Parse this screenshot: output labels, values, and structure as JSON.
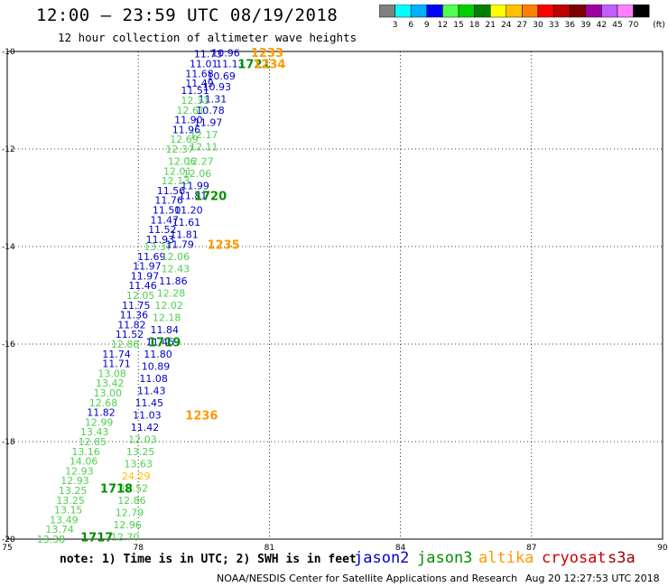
{
  "header": {
    "title": "12:00 – 23:59 UTC 08/19/2018",
    "subtitle": "12 hour collection of altimeter wave heights"
  },
  "colorbar": {
    "labels": [
      "3",
      "6",
      "9",
      "12",
      "15",
      "18",
      "21",
      "24",
      "27",
      "30",
      "33",
      "36",
      "39",
      "42",
      "45",
      "70"
    ],
    "unit": "(ft)",
    "colors": [
      "#808080",
      "#00ffff",
      "#00b0ff",
      "#0000ff",
      "#50ff50",
      "#00d000",
      "#008000",
      "#ffff00",
      "#ffc000",
      "#ff8000",
      "#ff0000",
      "#c00000",
      "#800000",
      "#a000a0",
      "#c060ff",
      "#ff80ff",
      "#000000"
    ]
  },
  "footer": {
    "note": "note: 1) Time is in UTC; 2) SWH is in feet",
    "org": "NOAA/NESDIS Center for Satellite Applications and Research",
    "timestamp": "Aug 20 12:27:53 UTC 2018"
  },
  "legend": [
    {
      "name": "jason2",
      "color": "#0000cc"
    },
    {
      "name": "jason3",
      "color": "#009000"
    },
    {
      "name": "altika",
      "color": "#ff9900"
    },
    {
      "name": "cryosat",
      "color": "#cc0000"
    },
    {
      "name": "s3a",
      "color": "#990000"
    }
  ],
  "chart_data": {
    "type": "scatter",
    "xlim": [
      75,
      90
    ],
    "ylim": [
      -20,
      -10
    ],
    "xticks": [
      "75",
      "78",
      "81",
      "84",
      "87",
      "90"
    ],
    "yticks": [
      "-10",
      "-12",
      "-14",
      "-16",
      "-18",
      "-20"
    ],
    "grid": true,
    "wave_height_labels": [
      {
        "lon": 79.6,
        "lat": -10.05,
        "text": "11.73",
        "color": "#0000cc"
      },
      {
        "lon": 80.0,
        "lat": -10.03,
        "text": "10.96",
        "color": "#0000cc"
      },
      {
        "lon": 79.5,
        "lat": -10.25,
        "text": "11.01",
        "color": "#0000cc"
      },
      {
        "lon": 80.1,
        "lat": -10.25,
        "text": "11.13",
        "color": "#0000cc"
      },
      {
        "lon": 79.4,
        "lat": -10.45,
        "text": "11.68",
        "color": "#0000cc"
      },
      {
        "lon": 79.9,
        "lat": -10.5,
        "text": "10.69",
        "color": "#0000cc"
      },
      {
        "lon": 79.4,
        "lat": -10.65,
        "text": "11.49",
        "color": "#0000cc"
      },
      {
        "lon": 79.8,
        "lat": -10.72,
        "text": "10.93",
        "color": "#0000cc"
      },
      {
        "lon": 79.3,
        "lat": -10.8,
        "text": "11.51",
        "color": "#0000cc"
      },
      {
        "lon": 79.7,
        "lat": -10.97,
        "text": "11.31",
        "color": "#0000cc"
      },
      {
        "lon": 79.3,
        "lat": -11.0,
        "text": "12.31",
        "color": "#50d050"
      },
      {
        "lon": 79.2,
        "lat": -11.2,
        "text": "12.61",
        "color": "#50d050"
      },
      {
        "lon": 79.65,
        "lat": -11.2,
        "text": "10.78",
        "color": "#0000cc"
      },
      {
        "lon": 79.15,
        "lat": -11.4,
        "text": "11.90",
        "color": "#0000cc"
      },
      {
        "lon": 79.6,
        "lat": -11.45,
        "text": "11.97",
        "color": "#0000cc"
      },
      {
        "lon": 79.1,
        "lat": -11.6,
        "text": "11.96",
        "color": "#0000cc"
      },
      {
        "lon": 79.5,
        "lat": -11.7,
        "text": "12.17",
        "color": "#50d050"
      },
      {
        "lon": 79.05,
        "lat": -11.8,
        "text": "12.69",
        "color": "#50d050"
      },
      {
        "lon": 79.5,
        "lat": -11.95,
        "text": "12.11",
        "color": "#50d050"
      },
      {
        "lon": 78.95,
        "lat": -12.0,
        "text": "12.37",
        "color": "#50d050"
      },
      {
        "lon": 79.0,
        "lat": -12.25,
        "text": "12.06",
        "color": "#50d050"
      },
      {
        "lon": 79.4,
        "lat": -12.25,
        "text": "12.27",
        "color": "#50d050"
      },
      {
        "lon": 78.9,
        "lat": -12.45,
        "text": "12.01",
        "color": "#50d050"
      },
      {
        "lon": 79.35,
        "lat": -12.5,
        "text": "12.06",
        "color": "#50d050"
      },
      {
        "lon": 78.85,
        "lat": -12.65,
        "text": "12.13",
        "color": "#50d050"
      },
      {
        "lon": 79.3,
        "lat": -12.75,
        "text": "11.99",
        "color": "#0000cc"
      },
      {
        "lon": 78.75,
        "lat": -12.85,
        "text": "11.56",
        "color": "#0000cc"
      },
      {
        "lon": 79.25,
        "lat": -12.95,
        "text": "11.81",
        "color": "#0000cc"
      },
      {
        "lon": 78.7,
        "lat": -13.05,
        "text": "11.76",
        "color": "#0000cc"
      },
      {
        "lon": 78.65,
        "lat": -13.25,
        "text": "11.50",
        "color": "#0000cc"
      },
      {
        "lon": 79.15,
        "lat": -13.25,
        "text": "11.20",
        "color": "#0000cc"
      },
      {
        "lon": 78.6,
        "lat": -13.45,
        "text": "11.47",
        "color": "#0000cc"
      },
      {
        "lon": 79.1,
        "lat": -13.5,
        "text": "11.61",
        "color": "#0000cc"
      },
      {
        "lon": 78.55,
        "lat": -13.65,
        "text": "11.52",
        "color": "#0000cc"
      },
      {
        "lon": 79.05,
        "lat": -13.75,
        "text": "11.81",
        "color": "#0000cc"
      },
      {
        "lon": 78.5,
        "lat": -13.85,
        "text": "11.93",
        "color": "#0000cc"
      },
      {
        "lon": 78.45,
        "lat": -14.0,
        "text": "13.37",
        "color": "#50d050"
      },
      {
        "lon": 78.95,
        "lat": -13.95,
        "text": "11.79",
        "color": "#0000cc"
      },
      {
        "lon": 78.3,
        "lat": -14.2,
        "text": "11.69",
        "color": "#0000cc"
      },
      {
        "lon": 78.85,
        "lat": -14.2,
        "text": "12.06",
        "color": "#50d050"
      },
      {
        "lon": 78.2,
        "lat": -14.4,
        "text": "11.97",
        "color": "#0000cc"
      },
      {
        "lon": 78.85,
        "lat": -14.45,
        "text": "12.43",
        "color": "#50d050"
      },
      {
        "lon": 78.15,
        "lat": -14.6,
        "text": "11.97",
        "color": "#0000cc"
      },
      {
        "lon": 78.8,
        "lat": -14.7,
        "text": "11.86",
        "color": "#0000cc"
      },
      {
        "lon": 78.1,
        "lat": -14.8,
        "text": "11.46",
        "color": "#0000cc"
      },
      {
        "lon": 78.75,
        "lat": -14.95,
        "text": "12.28",
        "color": "#50d050"
      },
      {
        "lon": 78.05,
        "lat": -15.0,
        "text": "12.05",
        "color": "#50d050"
      },
      {
        "lon": 78.7,
        "lat": -15.2,
        "text": "12.02",
        "color": "#50d050"
      },
      {
        "lon": 77.95,
        "lat": -15.2,
        "text": "11.75",
        "color": "#0000cc"
      },
      {
        "lon": 77.9,
        "lat": -15.4,
        "text": "11.36",
        "color": "#0000cc"
      },
      {
        "lon": 78.65,
        "lat": -15.45,
        "text": "12.18",
        "color": "#50d050"
      },
      {
        "lon": 77.85,
        "lat": -15.6,
        "text": "11.82",
        "color": "#0000cc"
      },
      {
        "lon": 78.6,
        "lat": -15.7,
        "text": "11.84",
        "color": "#0000cc"
      },
      {
        "lon": 77.8,
        "lat": -15.8,
        "text": "11.52",
        "color": "#0000cc"
      },
      {
        "lon": 77.7,
        "lat": -16.0,
        "text": "12.88",
        "color": "#50d050"
      },
      {
        "lon": 78.5,
        "lat": -15.95,
        "text": "11.45",
        "color": "#0000cc"
      },
      {
        "lon": 77.5,
        "lat": -16.2,
        "text": "11.74",
        "color": "#0000cc"
      },
      {
        "lon": 78.45,
        "lat": -16.2,
        "text": "11.80",
        "color": "#0000cc"
      },
      {
        "lon": 77.5,
        "lat": -16.4,
        "text": "11.71",
        "color": "#0000cc"
      },
      {
        "lon": 78.4,
        "lat": -16.45,
        "text": "10.89",
        "color": "#0000cc"
      },
      {
        "lon": 77.4,
        "lat": -16.6,
        "text": "13.08",
        "color": "#50d050"
      },
      {
        "lon": 78.35,
        "lat": -16.7,
        "text": "11.08",
        "color": "#0000cc"
      },
      {
        "lon": 77.35,
        "lat": -16.8,
        "text": "13.42",
        "color": "#50d050"
      },
      {
        "lon": 78.3,
        "lat": -16.95,
        "text": "11.43",
        "color": "#0000cc"
      },
      {
        "lon": 77.3,
        "lat": -17.0,
        "text": "13.00",
        "color": "#50d050"
      },
      {
        "lon": 78.25,
        "lat": -17.2,
        "text": "11.45",
        "color": "#0000cc"
      },
      {
        "lon": 77.2,
        "lat": -17.2,
        "text": "12.68",
        "color": "#50d050"
      },
      {
        "lon": 77.15,
        "lat": -17.4,
        "text": "11.82",
        "color": "#0000cc"
      },
      {
        "lon": 78.2,
        "lat": -17.45,
        "text": "11.03",
        "color": "#0000cc"
      },
      {
        "lon": 77.1,
        "lat": -17.6,
        "text": "12.99",
        "color": "#50d050"
      },
      {
        "lon": 78.15,
        "lat": -17.7,
        "text": "11.42",
        "color": "#0000cc"
      },
      {
        "lon": 77.0,
        "lat": -17.8,
        "text": "13.43",
        "color": "#50d050"
      },
      {
        "lon": 78.1,
        "lat": -17.95,
        "text": "12.03",
        "color": "#50d050"
      },
      {
        "lon": 76.95,
        "lat": -18.0,
        "text": "12.85",
        "color": "#50d050"
      },
      {
        "lon": 76.8,
        "lat": -18.2,
        "text": "13.16",
        "color": "#50d050"
      },
      {
        "lon": 78.05,
        "lat": -18.2,
        "text": "13.25",
        "color": "#50d050"
      },
      {
        "lon": 76.75,
        "lat": -18.4,
        "text": "14.06",
        "color": "#50d050"
      },
      {
        "lon": 78.0,
        "lat": -18.45,
        "text": "13.63",
        "color": "#50d050"
      },
      {
        "lon": 76.65,
        "lat": -18.6,
        "text": "12.93",
        "color": "#50d050"
      },
      {
        "lon": 77.95,
        "lat": -18.7,
        "text": "24.29",
        "color": "#ffc000"
      },
      {
        "lon": 76.55,
        "lat": -18.8,
        "text": "12.93",
        "color": "#50d050"
      },
      {
        "lon": 77.9,
        "lat": -18.95,
        "text": "12.52",
        "color": "#50d050"
      },
      {
        "lon": 76.5,
        "lat": -19.0,
        "text": "13.25",
        "color": "#50d050"
      },
      {
        "lon": 77.85,
        "lat": -19.2,
        "text": "12.86",
        "color": "#50d050"
      },
      {
        "lon": 76.45,
        "lat": -19.2,
        "text": "13.25",
        "color": "#50d050"
      },
      {
        "lon": 76.4,
        "lat": -19.4,
        "text": "13.15",
        "color": "#50d050"
      },
      {
        "lon": 77.8,
        "lat": -19.45,
        "text": "12.79",
        "color": "#50d050"
      },
      {
        "lon": 76.3,
        "lat": -19.6,
        "text": "13.49",
        "color": "#50d050"
      },
      {
        "lon": 77.75,
        "lat": -19.7,
        "text": "12.96",
        "color": "#50d050"
      },
      {
        "lon": 76.2,
        "lat": -19.8,
        "text": "13.74",
        "color": "#50d050"
      },
      {
        "lon": 77.7,
        "lat": -19.95,
        "text": "12.70",
        "color": "#50d050"
      },
      {
        "lon": 76.0,
        "lat": -20.0,
        "text": "13.38",
        "color": "#50d050"
      }
    ],
    "time_labels": [
      {
        "lon": 80.95,
        "lat": -10.02,
        "text": "1233",
        "color": "#ff9900"
      },
      {
        "lon": 80.65,
        "lat": -10.25,
        "text": "1721",
        "color": "#009000"
      },
      {
        "lon": 81.0,
        "lat": -10.25,
        "text": "1234",
        "color": "#ff9900"
      },
      {
        "lon": 79.65,
        "lat": -12.95,
        "text": "1720",
        "color": "#009000"
      },
      {
        "lon": 79.95,
        "lat": -13.95,
        "text": "1235",
        "color": "#ff9900"
      },
      {
        "lon": 78.6,
        "lat": -15.95,
        "text": "1719",
        "color": "#009000"
      },
      {
        "lon": 79.45,
        "lat": -17.45,
        "text": "1236",
        "color": "#ff9900"
      },
      {
        "lon": 77.5,
        "lat": -18.95,
        "text": "1718",
        "color": "#009000"
      },
      {
        "lon": 77.05,
        "lat": -19.95,
        "text": "1717",
        "color": "#009000"
      }
    ]
  }
}
